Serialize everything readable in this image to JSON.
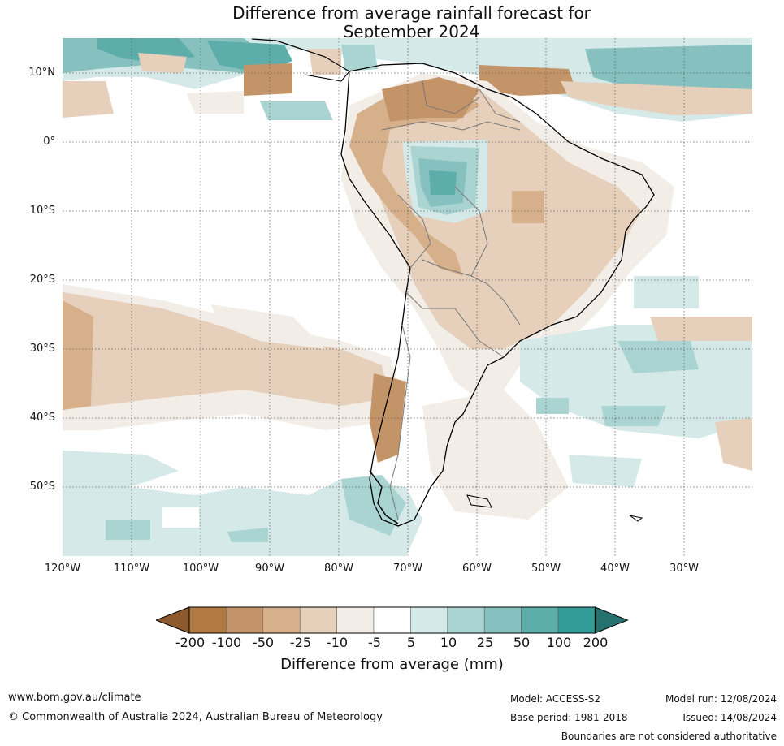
{
  "title": {
    "line1": "Difference from average rainfall forecast for",
    "line2": "September 2024"
  },
  "map": {
    "lat_labels": [
      "10°N",
      "0°",
      "10°S",
      "20°S",
      "30°S",
      "40°S",
      "50°S"
    ],
    "lon_labels": [
      "120°W",
      "110°W",
      "100°W",
      "90°W",
      "80°W",
      "70°W",
      "60°W",
      "50°W",
      "40°W",
      "30°W"
    ]
  },
  "colorbar": {
    "ticks": [
      "-200",
      "-100",
      "-50",
      "-25",
      "-10",
      "-5",
      "5",
      "10",
      "25",
      "50",
      "100",
      "200"
    ],
    "colors": [
      "#8c5a2c",
      "#b07a42",
      "#c49469",
      "#d6b08b",
      "#e6d0bc",
      "#f2ede6",
      "#ffffff",
      "#d4e9e8",
      "#a9d4d2",
      "#86c1bf",
      "#5dadaa",
      "#339b98",
      "#247170"
    ],
    "label": "Difference from average (mm)"
  },
  "footer": {
    "url": "www.bom.gov.au/climate",
    "copyright": "© Commonwealth of Australia 2024, Australian Bureau of Meteorology",
    "model": "Model: ACCESS-S2",
    "base_period": "Base period: 1981-2018",
    "model_run": "Model run: 12/08/2024",
    "issued": "Issued: 14/08/2024",
    "disclaimer": "Boundaries are not considered authoritative"
  }
}
